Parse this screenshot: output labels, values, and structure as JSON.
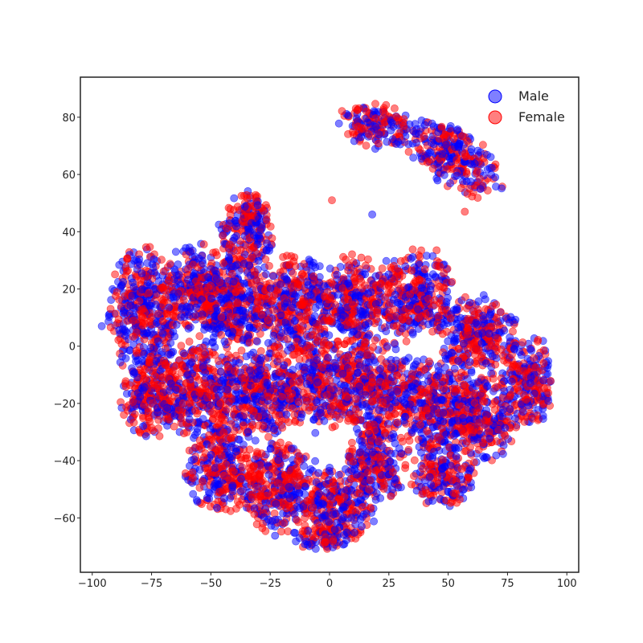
{
  "chart_data": {
    "type": "scatter",
    "title": "",
    "xlabel": "",
    "ylabel": "",
    "xlim": [
      -105,
      105
    ],
    "ylim": [
      -79,
      94
    ],
    "grid": false,
    "legend_placement": "top-right",
    "x_ticks": [
      -100,
      -75,
      -50,
      -25,
      0,
      25,
      50,
      75,
      100
    ],
    "y_ticks": [
      -60,
      -40,
      -20,
      0,
      20,
      40,
      60,
      80
    ],
    "x_tick_labels": [
      "−100",
      "−75",
      "−50",
      "−25",
      "0",
      "25",
      "50",
      "75",
      "100"
    ],
    "y_tick_labels": [
      "−60",
      "−40",
      "−20",
      "0",
      "20",
      "40",
      "60",
      "80"
    ],
    "marker_opacity": 0.5,
    "series": [
      {
        "name": "Male",
        "color": "#0000ff"
      },
      {
        "name": "Female",
        "color": "#ff0000"
      }
    ],
    "clusters": [
      {
        "cx": 52,
        "cy": 66,
        "rx": 20,
        "ry": 9,
        "angle_deg": -28,
        "share_male": 0.55
      },
      {
        "cx": 20,
        "cy": 77,
        "rx": 14,
        "ry": 7,
        "angle_deg": -10,
        "share_male": 0.5
      },
      {
        "cx": -78,
        "cy": 12,
        "rx": 13,
        "ry": 20,
        "angle_deg": 0,
        "share_male": 0.55
      },
      {
        "cx": -75,
        "cy": -18,
        "rx": 12,
        "ry": 12,
        "angle_deg": 0,
        "share_male": 0.4
      },
      {
        "cx": -55,
        "cy": 20,
        "rx": 14,
        "ry": 14,
        "angle_deg": 0,
        "share_male": 0.45
      },
      {
        "cx": -35,
        "cy": 40,
        "rx": 10,
        "ry": 12,
        "angle_deg": 0,
        "share_male": 0.45
      },
      {
        "cx": -40,
        "cy": 15,
        "rx": 14,
        "ry": 14,
        "angle_deg": 0,
        "share_male": 0.5
      },
      {
        "cx": -15,
        "cy": 15,
        "rx": 15,
        "ry": 15,
        "angle_deg": 0,
        "share_male": 0.45
      },
      {
        "cx": 10,
        "cy": 15,
        "rx": 12,
        "ry": 15,
        "angle_deg": 0,
        "share_male": 0.5
      },
      {
        "cx": 35,
        "cy": 18,
        "rx": 16,
        "ry": 14,
        "angle_deg": 0,
        "share_male": 0.5
      },
      {
        "cx": 62,
        "cy": 5,
        "rx": 15,
        "ry": 12,
        "angle_deg": 0,
        "share_male": 0.5
      },
      {
        "cx": 83,
        "cy": -12,
        "rx": 10,
        "ry": 15,
        "angle_deg": 0,
        "share_male": 0.45
      },
      {
        "cx": -55,
        "cy": -15,
        "rx": 15,
        "ry": 15,
        "angle_deg": 0,
        "share_male": 0.45
      },
      {
        "cx": -30,
        "cy": -15,
        "rx": 15,
        "ry": 15,
        "angle_deg": 0,
        "share_male": 0.5
      },
      {
        "cx": -5,
        "cy": -12,
        "rx": 15,
        "ry": 15,
        "angle_deg": 0,
        "share_male": 0.45
      },
      {
        "cx": 20,
        "cy": -15,
        "rx": 15,
        "ry": 15,
        "angle_deg": 0,
        "share_male": 0.4
      },
      {
        "cx": 45,
        "cy": -20,
        "rx": 15,
        "ry": 15,
        "angle_deg": 0,
        "share_male": 0.5
      },
      {
        "cx": 65,
        "cy": -25,
        "rx": 12,
        "ry": 14,
        "angle_deg": 0,
        "share_male": 0.5
      },
      {
        "cx": -45,
        "cy": -42,
        "rx": 14,
        "ry": 14,
        "angle_deg": 0,
        "share_male": 0.45
      },
      {
        "cx": -20,
        "cy": -50,
        "rx": 15,
        "ry": 14,
        "angle_deg": 0,
        "share_male": 0.45
      },
      {
        "cx": 5,
        "cy": -55,
        "rx": 13,
        "ry": 12,
        "angle_deg": 0,
        "share_male": 0.45
      },
      {
        "cx": 20,
        "cy": -40,
        "rx": 12,
        "ry": 12,
        "angle_deg": 0,
        "share_male": 0.5
      },
      {
        "cx": 48,
        "cy": -45,
        "rx": 12,
        "ry": 10,
        "angle_deg": 0,
        "share_male": 0.5
      },
      {
        "cx": -3,
        "cy": -67,
        "rx": 10,
        "ry": 5,
        "angle_deg": 0,
        "share_male": 0.5
      },
      {
        "cx": -33,
        "cy": 48,
        "rx": 5,
        "ry": 5,
        "angle_deg": 0,
        "share_male": 0.3
      }
    ],
    "isolated_points": [
      {
        "x": -96,
        "y": 7,
        "series": "Male"
      },
      {
        "x": 1,
        "y": 51,
        "series": "Female"
      },
      {
        "x": 18,
        "y": 46,
        "series": "Male"
      },
      {
        "x": 57,
        "y": 47,
        "series": "Female"
      }
    ]
  }
}
